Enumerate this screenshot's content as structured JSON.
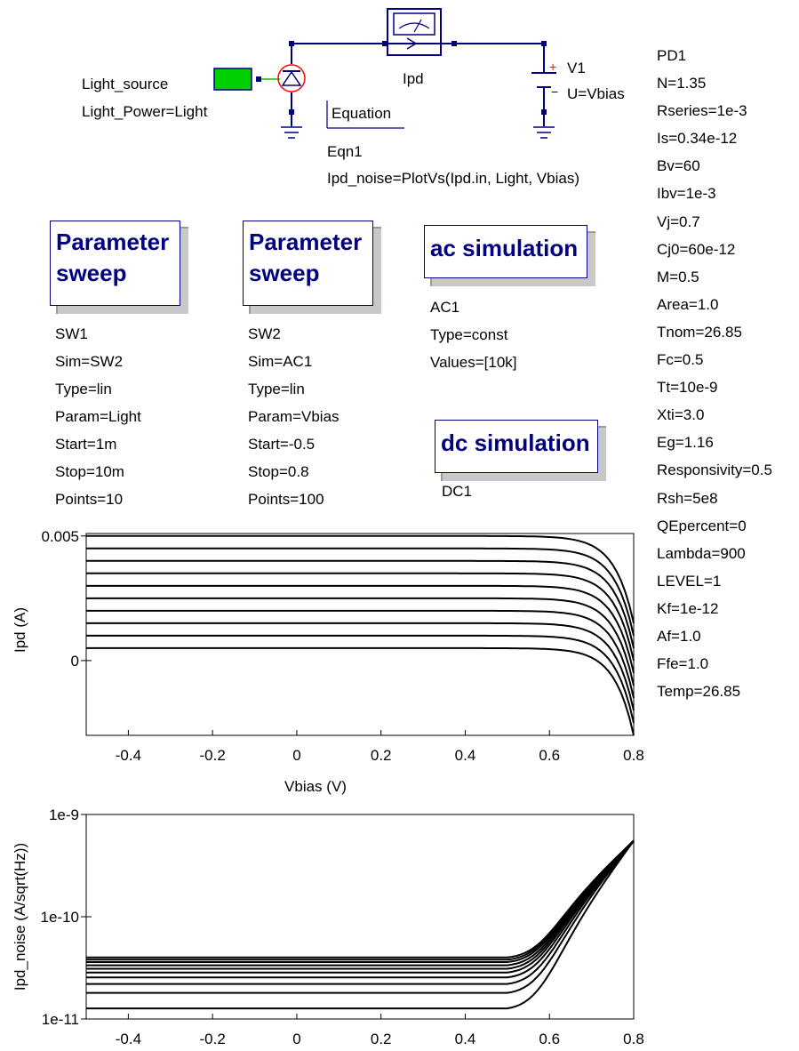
{
  "schematic": {
    "light_source": {
      "name": "Light_source",
      "param": "Light_Power=Light"
    },
    "ammeter_label": "Ipd",
    "voltage_source": {
      "name": "V1",
      "param": "U=Vbias",
      "plus": "+",
      "minus": "−"
    },
    "equation": {
      "title": "Equation",
      "name": "Eqn1",
      "expr": "Ipd_noise=PlotVs(Ipd.in, Light, Vbias)"
    },
    "photodiode": {
      "name": "PD1",
      "params": [
        "N=1.35",
        "Rseries=1e-3",
        "Is=0.34e-12",
        "Bv=60",
        "Ibv=1e-3",
        "Vj=0.7",
        "Cj0=60e-12",
        "M=0.5",
        "Area=1.0",
        "Tnom=26.85",
        "Fc=0.5",
        "Tt=10e-9",
        "Xti=3.0",
        "Eg=1.16",
        "Responsivity=0.5",
        "Rsh=5e8",
        "QEpercent=0",
        "Lambda=900",
        "LEVEL=1",
        "Kf=1e-12",
        "Af=1.0",
        "Ffe=1.0",
        "Temp=26.85"
      ]
    },
    "sweep1": {
      "title_line1": "Parameter",
      "title_line2": "sweep",
      "params": [
        "SW1",
        "Sim=SW2",
        "Type=lin",
        "Param=Light",
        "Start=1m",
        "Stop=10m",
        "Points=10"
      ]
    },
    "sweep2": {
      "title_line1": "Parameter",
      "title_line2": "sweep",
      "params": [
        "SW2",
        "Sim=AC1",
        "Type=lin",
        "Param=Vbias",
        "Start=-0.5",
        "Stop=0.8",
        "Points=100"
      ]
    },
    "ac": {
      "title": "ac simulation",
      "params": [
        "AC1",
        "Type=const",
        "Values=[10k]"
      ]
    },
    "dc": {
      "title": "dc simulation",
      "params": [
        "DC1"
      ]
    },
    "colors": {
      "component": "#000080",
      "wire": "#000080",
      "light_fill": "#00d000",
      "diode_circle": "#ff0000",
      "box_shadow": "#c8c8c8"
    }
  },
  "chart_data": [
    {
      "type": "line",
      "xlabel": "Vbias (V)",
      "ylabel": "Ipd (A)",
      "xlim": [
        -0.5,
        0.8
      ],
      "xticks": [
        "-0.4",
        "-0.2",
        "0",
        "0.2",
        "0.4",
        "0.6",
        "0.8"
      ],
      "yticks": [
        "0.005",
        "0"
      ],
      "ylim": [
        -0.003,
        0.0051
      ],
      "grid": false,
      "series_description_values": {
        "light_mW": [
          1,
          2,
          3,
          4,
          5,
          6,
          7,
          8,
          9,
          10
        ],
        "plateau_A": [
          0.0005,
          0.001,
          0.0015,
          0.002,
          0.0025,
          0.003,
          0.0035,
          0.004,
          0.0045,
          0.005
        ],
        "value_at_0.8V_A": [
          -0.003,
          -0.0025,
          -0.002,
          -0.0015,
          -0.001,
          -0.0005,
          0.0,
          0.0005,
          0.001,
          0.0015
        ]
      }
    },
    {
      "type": "line",
      "xlabel": "Vbias (V)",
      "ylabel": "Ipd_noise (A/sqrt(Hz))",
      "xlim": [
        -0.5,
        0.8
      ],
      "xticks": [
        "-0.4",
        "-0.2",
        "0",
        "0.2",
        "0.4",
        "0.6",
        "0.8"
      ],
      "yticks": [
        "1e-9",
        "1e-10",
        "1e-11"
      ],
      "ylim": [
        1e-11,
        1e-09
      ],
      "yscale": "log",
      "grid": false,
      "series_description_values": {
        "light_mW": [
          1,
          2,
          3,
          4,
          5,
          6,
          7,
          8,
          9,
          10
        ],
        "plateau_noise": [
          1.27e-11,
          1.8e-11,
          2.2e-11,
          2.55e-11,
          2.85e-11,
          3.1e-11,
          3.35e-11,
          3.6e-11,
          3.8e-11,
          4e-11
        ],
        "value_at_0.8V": 5.6e-10
      }
    }
  ]
}
